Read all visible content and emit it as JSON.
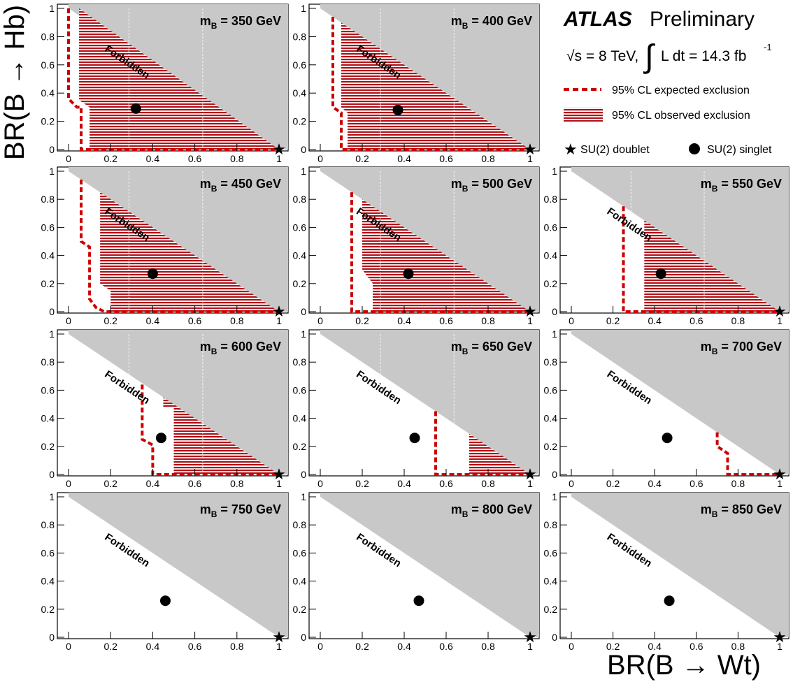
{
  "figure": {
    "y_axis_title": "BR(B → Hb)",
    "x_axis_title": "BR(B → Wt)",
    "forbidden_label": "Forbidden",
    "mass_prefix": "m",
    "mass_sub": "B",
    "mass_unit": "GeV"
  },
  "legend": {
    "experiment": "ATLAS",
    "status": "Preliminary",
    "energy": "√s = 8 TeV,",
    "lumi": "L dt = 14.3 fb",
    "lumi_exp": "-1",
    "expected": "95% CL expected exclusion",
    "observed": "95% CL observed exclusion",
    "doublet": "SU(2) doublet",
    "singlet": "SU(2) singlet"
  },
  "chart_data": [
    {
      "type": "scatter",
      "panel": "350",
      "mass": "350",
      "xlim": [
        0,
        1
      ],
      "ylim": [
        0,
        1
      ],
      "x_ticks": [
        "0",
        "0.2",
        "0.4",
        "0.6",
        "0.8",
        "1"
      ],
      "y_ticks": [
        "0",
        "0.2",
        "0.4",
        "0.6",
        "0.8",
        "1"
      ],
      "singlet": [
        0.32,
        0.29
      ],
      "doublet": [
        1,
        0
      ],
      "observed": [
        [
          0.05,
          1.0
        ],
        [
          0.05,
          0.55
        ],
        [
          0.05,
          0.35
        ],
        [
          0.1,
          0.3
        ],
        [
          0.1,
          0.0
        ],
        [
          1,
          0
        ]
      ],
      "expected": [
        [
          0,
          1
        ],
        [
          0,
          0.6
        ],
        [
          0,
          0.36
        ],
        [
          0.04,
          0.3
        ],
        [
          0.06,
          0.3
        ],
        [
          0.06,
          0
        ],
        [
          1,
          0
        ]
      ]
    },
    {
      "type": "scatter",
      "panel": "400",
      "mass": "400",
      "xlim": [
        0,
        1
      ],
      "ylim": [
        0,
        1
      ],
      "x_ticks": [
        "0",
        "0.2",
        "0.4",
        "0.6",
        "0.8",
        "1"
      ],
      "y_ticks": [
        "0",
        "0.2",
        "0.4",
        "0.6",
        "0.8",
        "1"
      ],
      "singlet": [
        0.37,
        0.28
      ],
      "doublet": [
        1,
        0
      ],
      "observed": [
        [
          0.1,
          0.9
        ],
        [
          0.1,
          0.3
        ],
        [
          0.13,
          0.26
        ],
        [
          0.13,
          0.0
        ],
        [
          1,
          0
        ]
      ],
      "expected": [
        [
          0.06,
          0.94
        ],
        [
          0.06,
          0.3
        ],
        [
          0.1,
          0.26
        ],
        [
          0.1,
          0.0
        ],
        [
          1,
          0
        ]
      ]
    },
    {
      "type": "scatter",
      "panel": "450",
      "mass": "450",
      "xlim": [
        0,
        1
      ],
      "ylim": [
        0,
        1
      ],
      "x_ticks": [
        "0",
        "0.2",
        "0.4",
        "0.6",
        "0.8",
        "1"
      ],
      "y_ticks": [
        "0",
        "0.2",
        "0.4",
        "0.6",
        "0.8",
        "1"
      ],
      "singlet": [
        0.4,
        0.27
      ],
      "doublet": [
        1,
        0
      ],
      "observed": [
        [
          0.15,
          0.85
        ],
        [
          0.15,
          0.2
        ],
        [
          0.2,
          0.15
        ],
        [
          0.2,
          0.0
        ],
        [
          1,
          0
        ]
      ],
      "expected": [
        [
          0.06,
          0.94
        ],
        [
          0.06,
          0.5
        ],
        [
          0.1,
          0.46
        ],
        [
          0.1,
          0.09
        ],
        [
          0.13,
          0.03
        ],
        [
          0.17,
          0.0
        ],
        [
          1,
          0
        ]
      ]
    },
    {
      "type": "scatter",
      "panel": "500",
      "mass": "500",
      "xlim": [
        0,
        1
      ],
      "ylim": [
        0,
        1
      ],
      "x_ticks": [
        "0",
        "0.2",
        "0.4",
        "0.6",
        "0.8",
        "1"
      ],
      "y_ticks": [
        "0",
        "0.2",
        "0.4",
        "0.6",
        "0.8",
        "1"
      ],
      "singlet": [
        0.42,
        0.27
      ],
      "doublet": [
        1,
        0
      ],
      "observed": [
        [
          0.2,
          0.8
        ],
        [
          0.2,
          0.3
        ],
        [
          0.25,
          0.2
        ],
        [
          0.25,
          0.0
        ],
        [
          1,
          0
        ]
      ],
      "expected": [
        [
          0.15,
          0.85
        ],
        [
          0.15,
          0.0
        ],
        [
          1,
          0
        ]
      ]
    },
    {
      "type": "scatter",
      "panel": "550",
      "mass": "550",
      "xlim": [
        0,
        1
      ],
      "ylim": [
        0,
        1
      ],
      "x_ticks": [
        "0",
        "0.2",
        "0.4",
        "0.6",
        "0.8",
        "1"
      ],
      "y_ticks": [
        "0",
        "0.2",
        "0.4",
        "0.6",
        "0.8",
        "1"
      ],
      "singlet": [
        0.43,
        0.27
      ],
      "doublet": [
        1,
        0
      ],
      "observed": [
        [
          0.35,
          0.65
        ],
        [
          0.35,
          0.0
        ],
        [
          1,
          0
        ]
      ],
      "expected": [
        [
          0.25,
          0.75
        ],
        [
          0.25,
          0.0
        ],
        [
          1,
          0
        ]
      ]
    },
    {
      "type": "scatter",
      "panel": "600",
      "mass": "600",
      "xlim": [
        0,
        1
      ],
      "ylim": [
        0,
        1
      ],
      "x_ticks": [
        "0",
        "0.2",
        "0.4",
        "0.6",
        "0.8",
        "1"
      ],
      "y_ticks": [
        "0",
        "0.2",
        "0.4",
        "0.6",
        "0.8",
        "1"
      ],
      "singlet": [
        0.44,
        0.26
      ],
      "doublet": [
        1,
        0
      ],
      "observed": [
        [
          0.45,
          0.55
        ],
        [
          0.45,
          0.48
        ],
        [
          0.5,
          0.48
        ],
        [
          0.5,
          0.0
        ],
        [
          1,
          0
        ]
      ],
      "expected": [
        [
          0.35,
          0.64
        ],
        [
          0.35,
          0.25
        ],
        [
          0.4,
          0.21
        ],
        [
          0.4,
          0.0
        ],
        [
          1,
          0
        ]
      ]
    },
    {
      "type": "scatter",
      "panel": "650",
      "mass": "650",
      "xlim": [
        0,
        1
      ],
      "ylim": [
        0,
        1
      ],
      "x_ticks": [
        "0",
        "0.2",
        "0.4",
        "0.6",
        "0.8",
        "1"
      ],
      "y_ticks": [
        "0",
        "0.2",
        "0.4",
        "0.6",
        "0.8",
        "1"
      ],
      "singlet": [
        0.45,
        0.26
      ],
      "doublet": [
        1,
        0
      ],
      "observed": [
        [
          0.71,
          0.29
        ],
        [
          0.71,
          0.0
        ],
        [
          1,
          0
        ]
      ],
      "expected": [
        [
          0.55,
          0.45
        ],
        [
          0.55,
          0.0
        ],
        [
          1,
          0
        ]
      ]
    },
    {
      "type": "scatter",
      "panel": "700",
      "mass": "700",
      "xlim": [
        0,
        1
      ],
      "ylim": [
        0,
        1
      ],
      "x_ticks": [
        "0",
        "0.2",
        "0.4",
        "0.6",
        "0.8",
        "1"
      ],
      "y_ticks": [
        "0",
        "0.2",
        "0.4",
        "0.6",
        "0.8",
        "1"
      ],
      "singlet": [
        0.46,
        0.26
      ],
      "doublet": [
        1,
        0
      ],
      "observed": [],
      "expected": [
        [
          0.7,
          0.3
        ],
        [
          0.7,
          0.2
        ],
        [
          0.75,
          0.15
        ],
        [
          0.75,
          0.0
        ],
        [
          1,
          0
        ]
      ]
    },
    {
      "type": "scatter",
      "panel": "750",
      "mass": "750",
      "xlim": [
        0,
        1
      ],
      "ylim": [
        0,
        1
      ],
      "x_ticks": [
        "0",
        "0.2",
        "0.4",
        "0.6",
        "0.8",
        "1"
      ],
      "y_ticks": [
        "0",
        "0.2",
        "0.4",
        "0.6",
        "0.8",
        "1"
      ],
      "singlet": [
        0.46,
        0.26
      ],
      "doublet": [
        1,
        0
      ],
      "observed": [],
      "expected": []
    },
    {
      "type": "scatter",
      "panel": "800",
      "mass": "800",
      "xlim": [
        0,
        1
      ],
      "ylim": [
        0,
        1
      ],
      "x_ticks": [
        "0",
        "0.2",
        "0.4",
        "0.6",
        "0.8",
        "1"
      ],
      "y_ticks": [
        "0",
        "0.2",
        "0.4",
        "0.6",
        "0.8",
        "1"
      ],
      "singlet": [
        0.47,
        0.26
      ],
      "doublet": [
        1,
        0
      ],
      "observed": [],
      "expected": []
    },
    {
      "type": "scatter",
      "panel": "850",
      "mass": "850",
      "xlim": [
        0,
        1
      ],
      "ylim": [
        0,
        1
      ],
      "x_ticks": [
        "0",
        "0.2",
        "0.4",
        "0.6",
        "0.8",
        "1"
      ],
      "y_ticks": [
        "0",
        "0.2",
        "0.4",
        "0.6",
        "0.8",
        "1"
      ],
      "singlet": [
        0.47,
        0.26
      ],
      "doublet": [
        1,
        0
      ],
      "observed": [],
      "expected": []
    }
  ],
  "colors": {
    "forbidden": "#c8c8c8",
    "observed": "#b01018",
    "expected": "#cc0000",
    "axis": "#000000"
  }
}
